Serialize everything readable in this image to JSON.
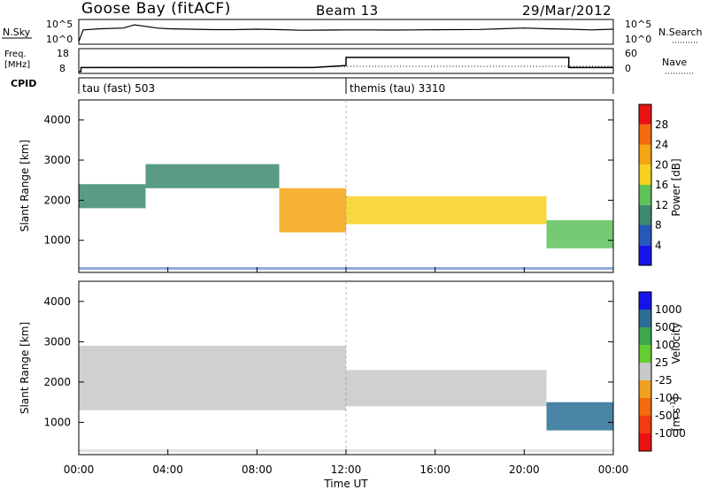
{
  "header": {
    "station": "Goose Bay (fitACF)",
    "beam": "Beam 13",
    "date": "29/Mar/2012"
  },
  "noise_panel": {
    "left_label": "N.Sky",
    "right_label": "N.Search",
    "ticks_left": [
      "10^5",
      "10^0"
    ],
    "ticks_right": [
      "10^5",
      "10^0"
    ]
  },
  "freq_panel": {
    "left_label_1": "Freq.",
    "left_label_2": "[MHz]",
    "right_label": "Nave",
    "ticks_left": [
      "18",
      "8"
    ],
    "ticks_right": [
      "60",
      "0"
    ]
  },
  "cpid_panel": {
    "label": "CPID",
    "modes": [
      {
        "name": "tau (fast) 503",
        "start_hour": 0
      },
      {
        "name": "themis (tau) 3310",
        "start_hour": 12
      }
    ]
  },
  "colorbars": {
    "power": {
      "label": "Power [dB]",
      "ticks": [
        "4",
        "8",
        "12",
        "16",
        "20",
        "24",
        "28"
      ],
      "colors": [
        "#1414e6",
        "#2858b8",
        "#3c8a6e",
        "#5ec15a",
        "#f6d11f",
        "#f5a512",
        "#f46a0f",
        "#e81414"
      ]
    },
    "velocity": {
      "label": "Velocity",
      "unit": "[m s",
      "unit_exp": "-1",
      "unit_close": "]",
      "ticks": [
        "1000",
        "500",
        "100",
        "25",
        "-25",
        "-100",
        "-500",
        "-1000"
      ],
      "colors": [
        "#1414e6",
        "#2a6e94",
        "#3ca650",
        "#66cc33",
        "#c8c8c8",
        "#f0a020",
        "#f46a10",
        "#f03c10",
        "#e81414"
      ]
    }
  },
  "chart_data": [
    {
      "type": "line",
      "title": "",
      "series": [
        {
          "name": "N.Sky",
          "x": [
            0,
            0.2,
            1,
            2,
            2.5,
            3,
            3.5,
            4,
            5,
            6,
            7,
            8,
            9,
            10,
            11,
            12,
            13,
            14,
            15,
            16,
            17,
            18,
            19,
            20,
            21,
            22,
            23,
            24
          ],
          "y": [
            1,
            1000,
            2000,
            3000,
            20000,
            8000,
            3000,
            2000,
            1500,
            1200,
            1200,
            1500,
            1200,
            800,
            900,
            1000,
            1000,
            900,
            1000,
            1100,
            1200,
            1300,
            2000,
            3000,
            2000,
            1500,
            1000,
            1500
          ]
        }
      ],
      "yscale": "log"
    },
    {
      "type": "line",
      "title": "",
      "xlabel": "",
      "ylabel": "Freq. [MHz]",
      "ylim": [
        8,
        18
      ],
      "series": [
        {
          "name": "Freq.",
          "x": [
            0,
            0.1,
            0.1,
            10.5,
            12,
            12,
            22,
            22,
            24
          ],
          "y": [
            8,
            8,
            10,
            10,
            11,
            15,
            15,
            10,
            10
          ]
        }
      ]
    },
    {
      "type": "heatmap",
      "xlabel": "Time UT",
      "ylabel": "Slant Range [km]",
      "xlim": [
        0,
        24
      ],
      "ylim": [
        200,
        4500
      ],
      "x_ticks": [
        "00:00",
        "04:00",
        "08:00",
        "12:00",
        "16:00",
        "20:00",
        "00:00"
      ],
      "y_ticks": [
        1000,
        2000,
        3000,
        4000
      ],
      "layers": [
        {
          "parameter": "Power [dB]",
          "bands": [
            {
              "t0": 0,
              "t1": 3,
              "r_lo": 1800,
              "r_hi": 2400,
              "level": 8
            },
            {
              "t0": 3,
              "t1": 9,
              "r_lo": 2300,
              "r_hi": 2900,
              "level": 10
            },
            {
              "t0": 9,
              "t1": 12,
              "r_lo": 1200,
              "r_hi": 2300,
              "level": 20
            },
            {
              "t0": 12,
              "t1": 21,
              "r_lo": 1400,
              "r_hi": 2100,
              "level": 16
            },
            {
              "t0": 21,
              "t1": 24,
              "r_lo": 800,
              "r_hi": 1500,
              "level": 14
            }
          ]
        },
        {
          "parameter": "Velocity [m s-1]",
          "bands": [
            {
              "t0": 0,
              "t1": 12,
              "r_lo": 1300,
              "r_hi": 2900,
              "level": 0
            },
            {
              "t0": 12,
              "t1": 21,
              "r_lo": 1400,
              "r_hi": 2300,
              "level": 0
            },
            {
              "t0": 21,
              "t1": 24,
              "r_lo": 800,
              "r_hi": 1500,
              "level": 200
            }
          ]
        }
      ]
    }
  ]
}
